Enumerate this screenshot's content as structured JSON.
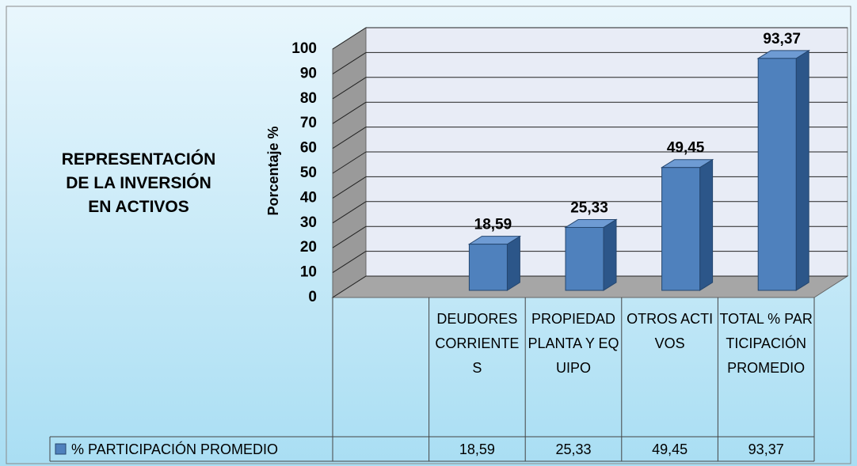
{
  "chart_data": {
    "type": "bar3d",
    "title": "REPRESENTACIÓN DE LA INVERSIÓN EN ACTIVOS",
    "y_label": "Porcentaje %",
    "categories": [
      null,
      "DEUDORES CORRIENTES",
      "PROPIEDAD PLANTA Y EQUIPO",
      "OTROS ACTIVOS",
      "TOTAL  % PARTICIPACIÓN PROMEDIO"
    ],
    "series": [
      {
        "name": "% PARTICIPACIÓN PROMEDIO",
        "color": "#4f81bd",
        "values": [
          null,
          18.59,
          25.33,
          49.45,
          93.37
        ],
        "value_labels": [
          null,
          "18,59",
          "25,33",
          "49,45",
          "93,37"
        ]
      }
    ],
    "ylim": [
      0,
      100
    ],
    "yticks": [
      0,
      10,
      20,
      30,
      40,
      50,
      60,
      70,
      80,
      90,
      100
    ],
    "grid": true,
    "data_table": true
  }
}
